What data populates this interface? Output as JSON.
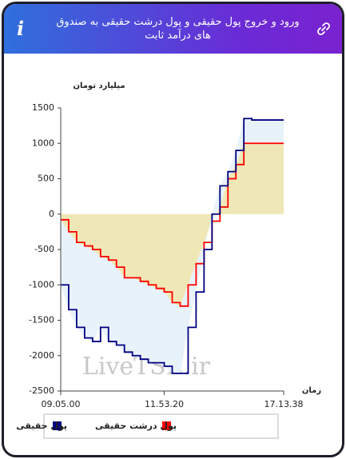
{
  "chart_data": {
    "type": "area-line",
    "title": "ورود و خروج پول حقیقی و پول درشت حقیقی به صندوق های درآمد ثابت",
    "y_label": "میلیارد تومان",
    "x_label": "زمان",
    "watermark": "LiveTSE.ir",
    "categories": [
      "09.05.00",
      null,
      null,
      null,
      null,
      null,
      null,
      null,
      null,
      null,
      null,
      null,
      null,
      "11.53.20",
      null,
      null,
      null,
      null,
      null,
      null,
      null,
      null,
      null,
      null,
      null,
      null,
      null,
      null,
      "17.13.38"
    ],
    "series": [
      {
        "name": "پول حقیقی",
        "color": "#000080",
        "fill": "#e8f2fa",
        "values": [
          -1000,
          -1350,
          -1600,
          -1750,
          -1800,
          -1600,
          -1800,
          -1850,
          -1950,
          -2000,
          -2050,
          -2100,
          -2100,
          -2150,
          -2250,
          -2250,
          -1600,
          -1100,
          -500,
          0,
          400,
          600,
          900,
          1350,
          1330,
          1330,
          1330,
          1330,
          1330
        ]
      },
      {
        "name": "پول درشت حقیقی",
        "color": "#ff0000",
        "fill": "#efe8b6",
        "values": [
          -80,
          -250,
          -400,
          -450,
          -500,
          -600,
          -650,
          -750,
          -900,
          -900,
          -950,
          -1000,
          -1050,
          -1100,
          -1250,
          -1300,
          -1000,
          -700,
          -400,
          -100,
          100,
          500,
          700,
          1000,
          1000,
          1000,
          1000,
          1000,
          1000
        ]
      }
    ],
    "ylim": [
      -2500,
      1500
    ],
    "yticks": [
      -2500,
      -2000,
      -1500,
      -1000,
      -500,
      0,
      500,
      1000,
      1500
    ]
  }
}
